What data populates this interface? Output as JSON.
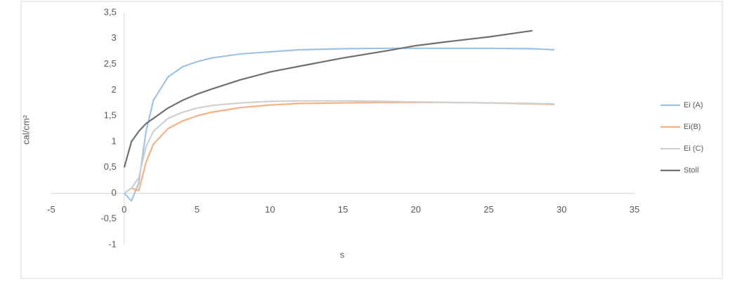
{
  "chart_data": {
    "type": "line",
    "x_label": "s",
    "y_label": "cal/cm²",
    "x": [
      0,
      0.5,
      1,
      1.5,
      2,
      3,
      4,
      5,
      6,
      8,
      10,
      12,
      15,
      18,
      20,
      22,
      25,
      28,
      29.5
    ],
    "series": [
      {
        "name": "Ei (A)",
        "color": "#9dc3e6",
        "values": [
          0,
          -0.15,
          0.2,
          1.2,
          1.8,
          2.25,
          2.45,
          2.55,
          2.62,
          2.7,
          2.74,
          2.78,
          2.8,
          2.81,
          2.81,
          2.81,
          2.81,
          2.8,
          2.78
        ]
      },
      {
        "name": "Ei(B)",
        "color": "#f4b183",
        "values": [
          0,
          0.1,
          0.05,
          0.6,
          0.95,
          1.25,
          1.4,
          1.5,
          1.57,
          1.66,
          1.71,
          1.74,
          1.75,
          1.76,
          1.76,
          1.76,
          1.75,
          1.73,
          1.72
        ]
      },
      {
        "name": "Ei (C)",
        "color": "#d0d0d0",
        "values": [
          0,
          0.1,
          0.3,
          0.9,
          1.2,
          1.45,
          1.57,
          1.65,
          1.7,
          1.75,
          1.78,
          1.79,
          1.79,
          1.78,
          1.77,
          1.76,
          1.75,
          1.74,
          1.73
        ]
      },
      {
        "name": "Stoll",
        "color": "#707070",
        "values": [
          0.5,
          1.0,
          1.2,
          1.35,
          1.45,
          1.65,
          1.8,
          1.92,
          2.02,
          2.2,
          2.35,
          2.46,
          2.62,
          2.76,
          2.86,
          2.93,
          3.03,
          3.15,
          null
        ]
      }
    ],
    "xlim": [
      -5,
      35
    ],
    "xticks": [
      -5,
      0,
      5,
      10,
      15,
      20,
      25,
      30,
      35
    ],
    "ylim": [
      -1,
      3.5
    ],
    "yticks": [
      -1,
      {
        "value": -0.5,
        "label": "-0,5"
      },
      0,
      {
        "value": 0.5,
        "label": "0,5"
      },
      1,
      {
        "value": 1.5,
        "label": "1,5"
      },
      2,
      {
        "value": 2.5,
        "label": "2,5"
      },
      3,
      {
        "value": 3.5,
        "label": "3,5"
      }
    ],
    "grid": false,
    "legend": "right"
  }
}
